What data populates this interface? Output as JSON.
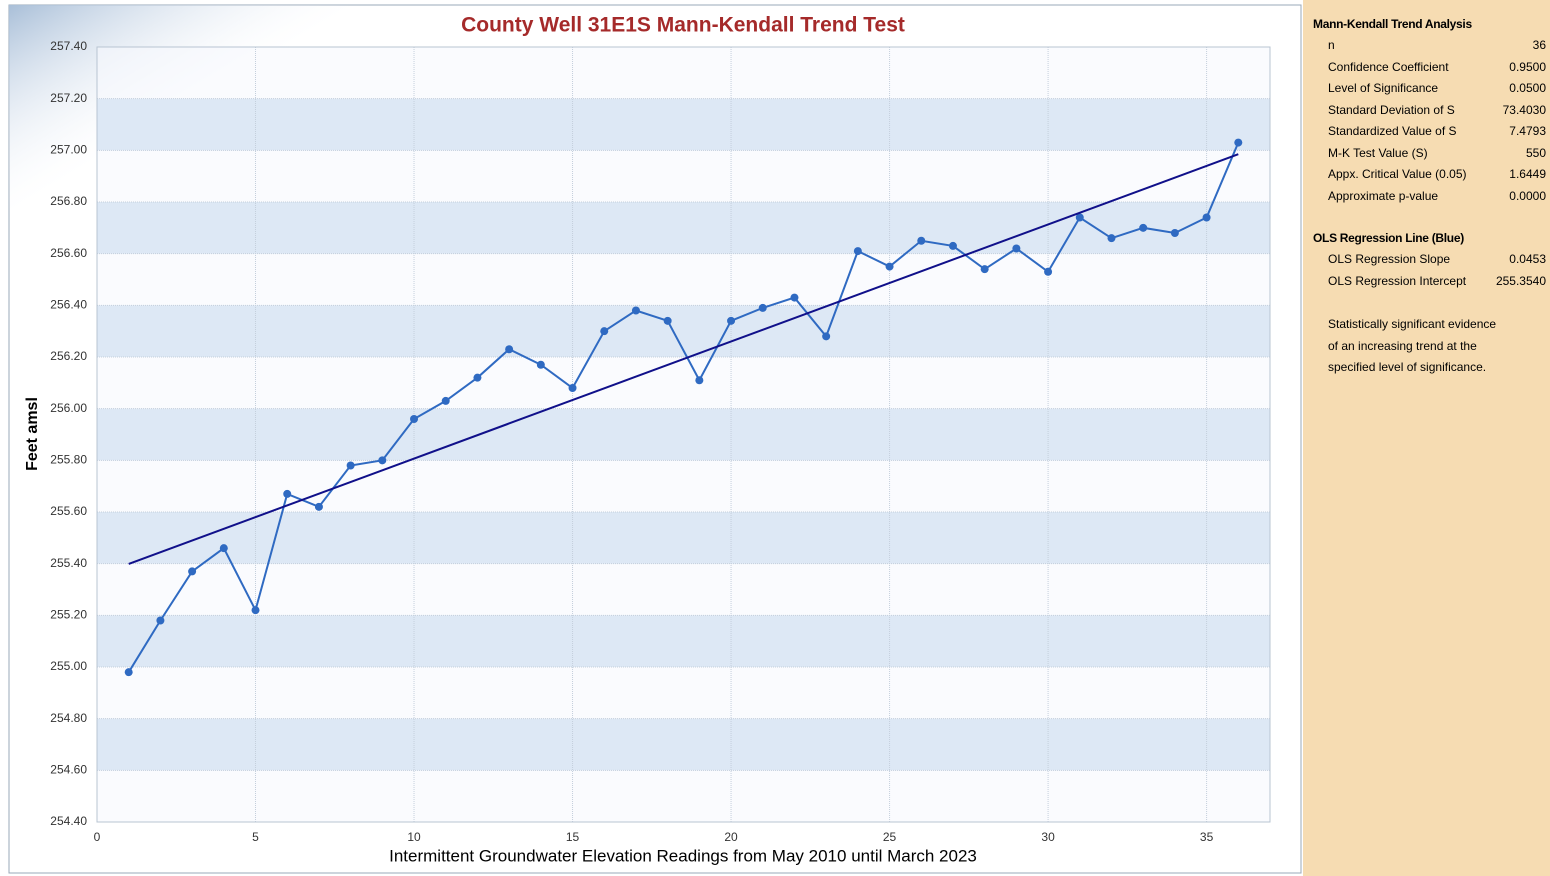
{
  "chart_data": {
    "type": "line",
    "title": "County Well 31E1S Mann-Kendall Trend Test",
    "x_label": "Intermittent Groundwater Elevation Readings from May 2010 until March 2023",
    "y_label": "Feet amsl",
    "x": [
      1,
      2,
      3,
      4,
      5,
      6,
      7,
      8,
      9,
      10,
      11,
      12,
      13,
      14,
      15,
      16,
      17,
      18,
      19,
      20,
      21,
      22,
      23,
      24,
      25,
      26,
      27,
      28,
      29,
      30,
      31,
      32,
      33,
      34,
      35,
      36
    ],
    "series": [
      {
        "color": "#2f6ac2",
        "values": [
          254.98,
          255.18,
          255.37,
          255.46,
          255.22,
          255.67,
          255.62,
          255.78,
          255.8,
          255.96,
          256.03,
          256.12,
          256.23,
          256.17,
          256.08,
          256.3,
          256.38,
          256.34,
          256.11,
          256.34,
          256.39,
          256.43,
          256.28,
          256.61,
          256.55,
          256.65,
          256.63,
          256.54,
          256.62,
          256.53,
          256.74,
          256.66,
          256.7,
          256.68,
          256.74,
          257.03
        ]
      },
      {
        "color": "#10108a",
        "x": [
          1,
          36
        ],
        "values": [
          255.399,
          256.985
        ]
      }
    ],
    "xlim": [
      0,
      37
    ],
    "xticks": [
      0,
      5,
      10,
      15,
      20,
      25,
      30,
      35
    ],
    "ylim": [
      254.4,
      257.4
    ],
    "yticks": [
      {
        "value": 254.4,
        "label": "254.40"
      },
      {
        "value": 254.6,
        "label": "254.60"
      },
      {
        "value": 254.8,
        "label": "254.80"
      },
      {
        "value": 255.0,
        "label": "255.00"
      },
      {
        "value": 255.2,
        "label": "255.20"
      },
      {
        "value": 255.4,
        "label": "255.40"
      },
      {
        "value": 255.6,
        "label": "255.60"
      },
      {
        "value": 255.8,
        "label": "255.80"
      },
      {
        "value": 256.0,
        "label": "256.00"
      },
      {
        "value": 256.2,
        "label": "256.20"
      },
      {
        "value": 256.4,
        "label": "256.40"
      },
      {
        "value": 256.6,
        "label": "256.60"
      },
      {
        "value": 256.8,
        "label": "256.80"
      },
      {
        "value": 257.0,
        "label": "257.00"
      },
      {
        "value": 257.2,
        "label": "257.20"
      },
      {
        "value": 257.4,
        "label": "257.40"
      }
    ],
    "grid": true
  },
  "panel": {
    "title": "Mann-Kendall Trend Analysis",
    "rows": [
      [
        "n",
        "36"
      ],
      [
        "Confidence Coefficient",
        "0.9500"
      ],
      [
        "Level of Significance",
        "0.0500"
      ],
      [
        "Standard Deviation of S",
        "73.4030"
      ],
      [
        "Standardized Value of S",
        "7.4793"
      ],
      [
        "M-K Test Value (S)",
        "550"
      ],
      [
        "Appx. Critical Value (0.05)",
        "1.6449"
      ],
      [
        "Approximate p-value",
        "0.0000"
      ]
    ],
    "ols_title": "OLS Regression Line (Blue)",
    "ols_rows": [
      [
        "OLS Regression Slope",
        "0.0453"
      ],
      [
        "OLS Regression Intercept",
        "255.3540"
      ]
    ],
    "note": [
      "Statistically significant evidence",
      "of an increasing trend at the",
      "specified level of significance."
    ]
  }
}
